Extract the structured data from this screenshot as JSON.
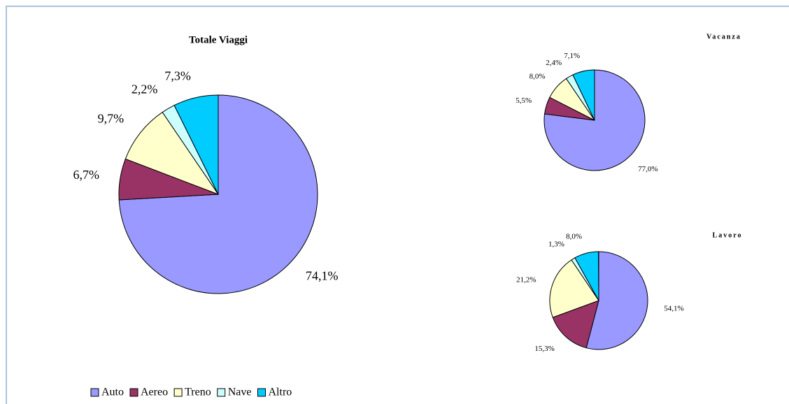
{
  "legend": {
    "categories": [
      "Auto",
      "Aereo",
      "Treno",
      "Nave",
      "Altro"
    ],
    "colors": [
      "#9999ff",
      "#993366",
      "#ffffcc",
      "#ccffff",
      "#00ccff"
    ]
  },
  "chart_data": [
    {
      "type": "pie",
      "title": "Totale Viaggi",
      "values": [
        74.1,
        6.7,
        9.7,
        2.2,
        7.3
      ],
      "value_labels": [
        "74,1%",
        "6,7%",
        "9,7%",
        "2,2%",
        "7,3%"
      ]
    },
    {
      "type": "pie",
      "title": "Vacanza",
      "values": [
        77.0,
        5.5,
        8.0,
        2.4,
        7.1
      ],
      "value_labels": [
        "77,0%",
        "5,5%",
        "8,0%",
        "2,4%",
        "7,1%"
      ]
    },
    {
      "type": "pie",
      "title": "Lavoro",
      "values": [
        54.1,
        15.3,
        21.2,
        1.3,
        8.0
      ],
      "value_labels": [
        "54,1%",
        "15,3%",
        "21,2%",
        "1,3%",
        "8,0%"
      ]
    }
  ]
}
